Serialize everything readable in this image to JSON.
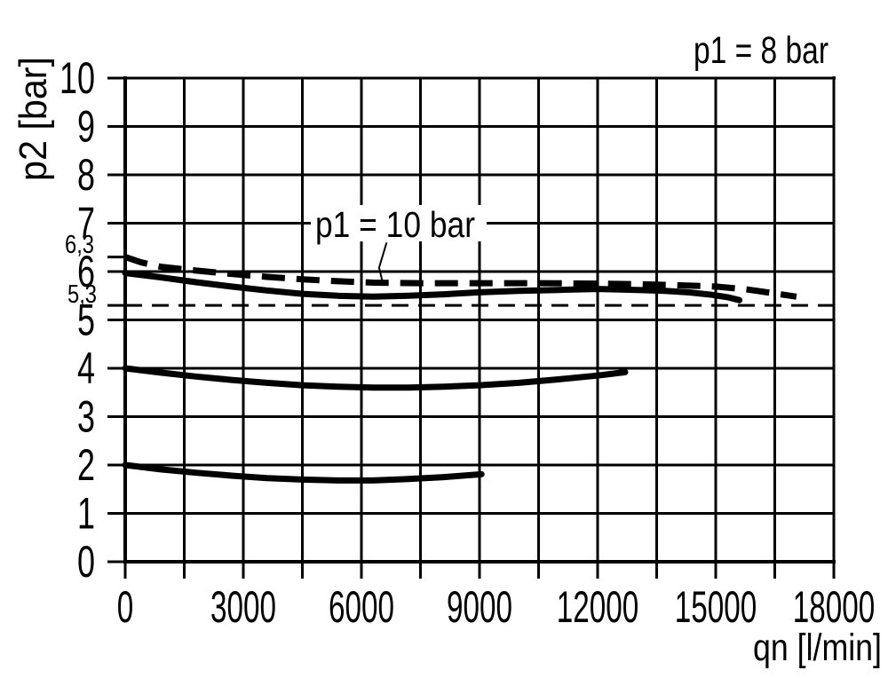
{
  "chart_data": {
    "type": "line",
    "title": "p1 = 8 bar",
    "xlabel": "qn [l/min]",
    "ylabel": "p2 [bar]",
    "xlim": [
      0,
      18000
    ],
    "ylim": [
      0,
      10
    ],
    "x_tick_values": [
      0,
      3000,
      6000,
      9000,
      12000,
      15000,
      18000
    ],
    "x_tick_labels": [
      "0",
      "3000",
      "6000",
      "9000",
      "12000",
      "15000",
      "18000"
    ],
    "x_grid_step": 1500,
    "y_tick_values": [
      0,
      1,
      2,
      3,
      4,
      5,
      6,
      7,
      8,
      9,
      10
    ],
    "y_tick_labels": [
      "0",
      "1",
      "2",
      "3",
      "4",
      "5",
      "6",
      "7",
      "8",
      "9",
      "10"
    ],
    "y_extra_ticks": [
      {
        "label": "6,3",
        "value": 6.3
      },
      {
        "label": "5,3",
        "value": 5.3
      }
    ],
    "grid": "on",
    "legend": "none",
    "colors": {
      "ink": "#000000",
      "background": "#ffffff"
    },
    "annotations": {
      "condition_label": {
        "text": "p1 = 8 bar",
        "position": "top-right"
      },
      "curve_label": {
        "text": "p1 = 10 bar",
        "leader_points": [
          [
            6640,
            6.6
          ],
          [
            6450,
            6.08
          ],
          [
            6560,
            5.71
          ]
        ]
      }
    },
    "reference_lines": [
      {
        "y": 5.3,
        "style": "thin-dashed",
        "x_range": [
          0,
          18000
        ]
      }
    ],
    "series": [
      {
        "id": "p1-10bar",
        "label": "p1 = 10 bar",
        "line": "dashed",
        "points": [
          [
            0,
            6.3
          ],
          [
            400,
            6.19
          ],
          [
            900,
            6.1
          ],
          [
            1800,
            6.02
          ],
          [
            2700,
            5.95
          ],
          [
            3600,
            5.89
          ],
          [
            4500,
            5.84
          ],
          [
            5400,
            5.8
          ],
          [
            6300,
            5.77
          ],
          [
            7500,
            5.76
          ],
          [
            9000,
            5.76
          ],
          [
            10500,
            5.76
          ],
          [
            12000,
            5.75
          ],
          [
            13000,
            5.74
          ],
          [
            14000,
            5.72
          ],
          [
            15000,
            5.69
          ],
          [
            15800,
            5.63
          ],
          [
            16400,
            5.56
          ],
          [
            17050,
            5.48
          ]
        ]
      },
      {
        "id": "p1-8bar-set-6bar",
        "label": "p1 = 8 bar",
        "line": "solid",
        "points": [
          [
            0,
            5.97
          ],
          [
            900,
            5.88
          ],
          [
            1800,
            5.78
          ],
          [
            2700,
            5.69
          ],
          [
            3600,
            5.61
          ],
          [
            4500,
            5.54
          ],
          [
            5400,
            5.5
          ],
          [
            6300,
            5.48
          ],
          [
            7200,
            5.5
          ],
          [
            8100,
            5.53
          ],
          [
            9000,
            5.57
          ],
          [
            10000,
            5.6
          ],
          [
            11000,
            5.62
          ],
          [
            12000,
            5.64
          ],
          [
            13000,
            5.62
          ],
          [
            13700,
            5.6
          ],
          [
            14300,
            5.57
          ],
          [
            14900,
            5.52
          ],
          [
            15300,
            5.47
          ],
          [
            15600,
            5.41
          ]
        ]
      },
      {
        "id": "set-4bar",
        "line": "solid",
        "points": [
          [
            0,
            4.0
          ],
          [
            900,
            3.91
          ],
          [
            1800,
            3.83
          ],
          [
            2700,
            3.76
          ],
          [
            3600,
            3.7
          ],
          [
            4500,
            3.65
          ],
          [
            5400,
            3.62
          ],
          [
            6300,
            3.6
          ],
          [
            7200,
            3.6
          ],
          [
            8100,
            3.62
          ],
          [
            9000,
            3.65
          ],
          [
            10000,
            3.7
          ],
          [
            11000,
            3.77
          ],
          [
            12000,
            3.85
          ],
          [
            12700,
            3.92
          ]
        ]
      },
      {
        "id": "set-2bar",
        "line": "solid",
        "points": [
          [
            0,
            2.0
          ],
          [
            900,
            1.91
          ],
          [
            1800,
            1.84
          ],
          [
            2700,
            1.78
          ],
          [
            3600,
            1.73
          ],
          [
            4500,
            1.7
          ],
          [
            5400,
            1.68
          ],
          [
            6300,
            1.68
          ],
          [
            7200,
            1.71
          ],
          [
            8100,
            1.75
          ],
          [
            9050,
            1.81
          ]
        ]
      }
    ]
  }
}
